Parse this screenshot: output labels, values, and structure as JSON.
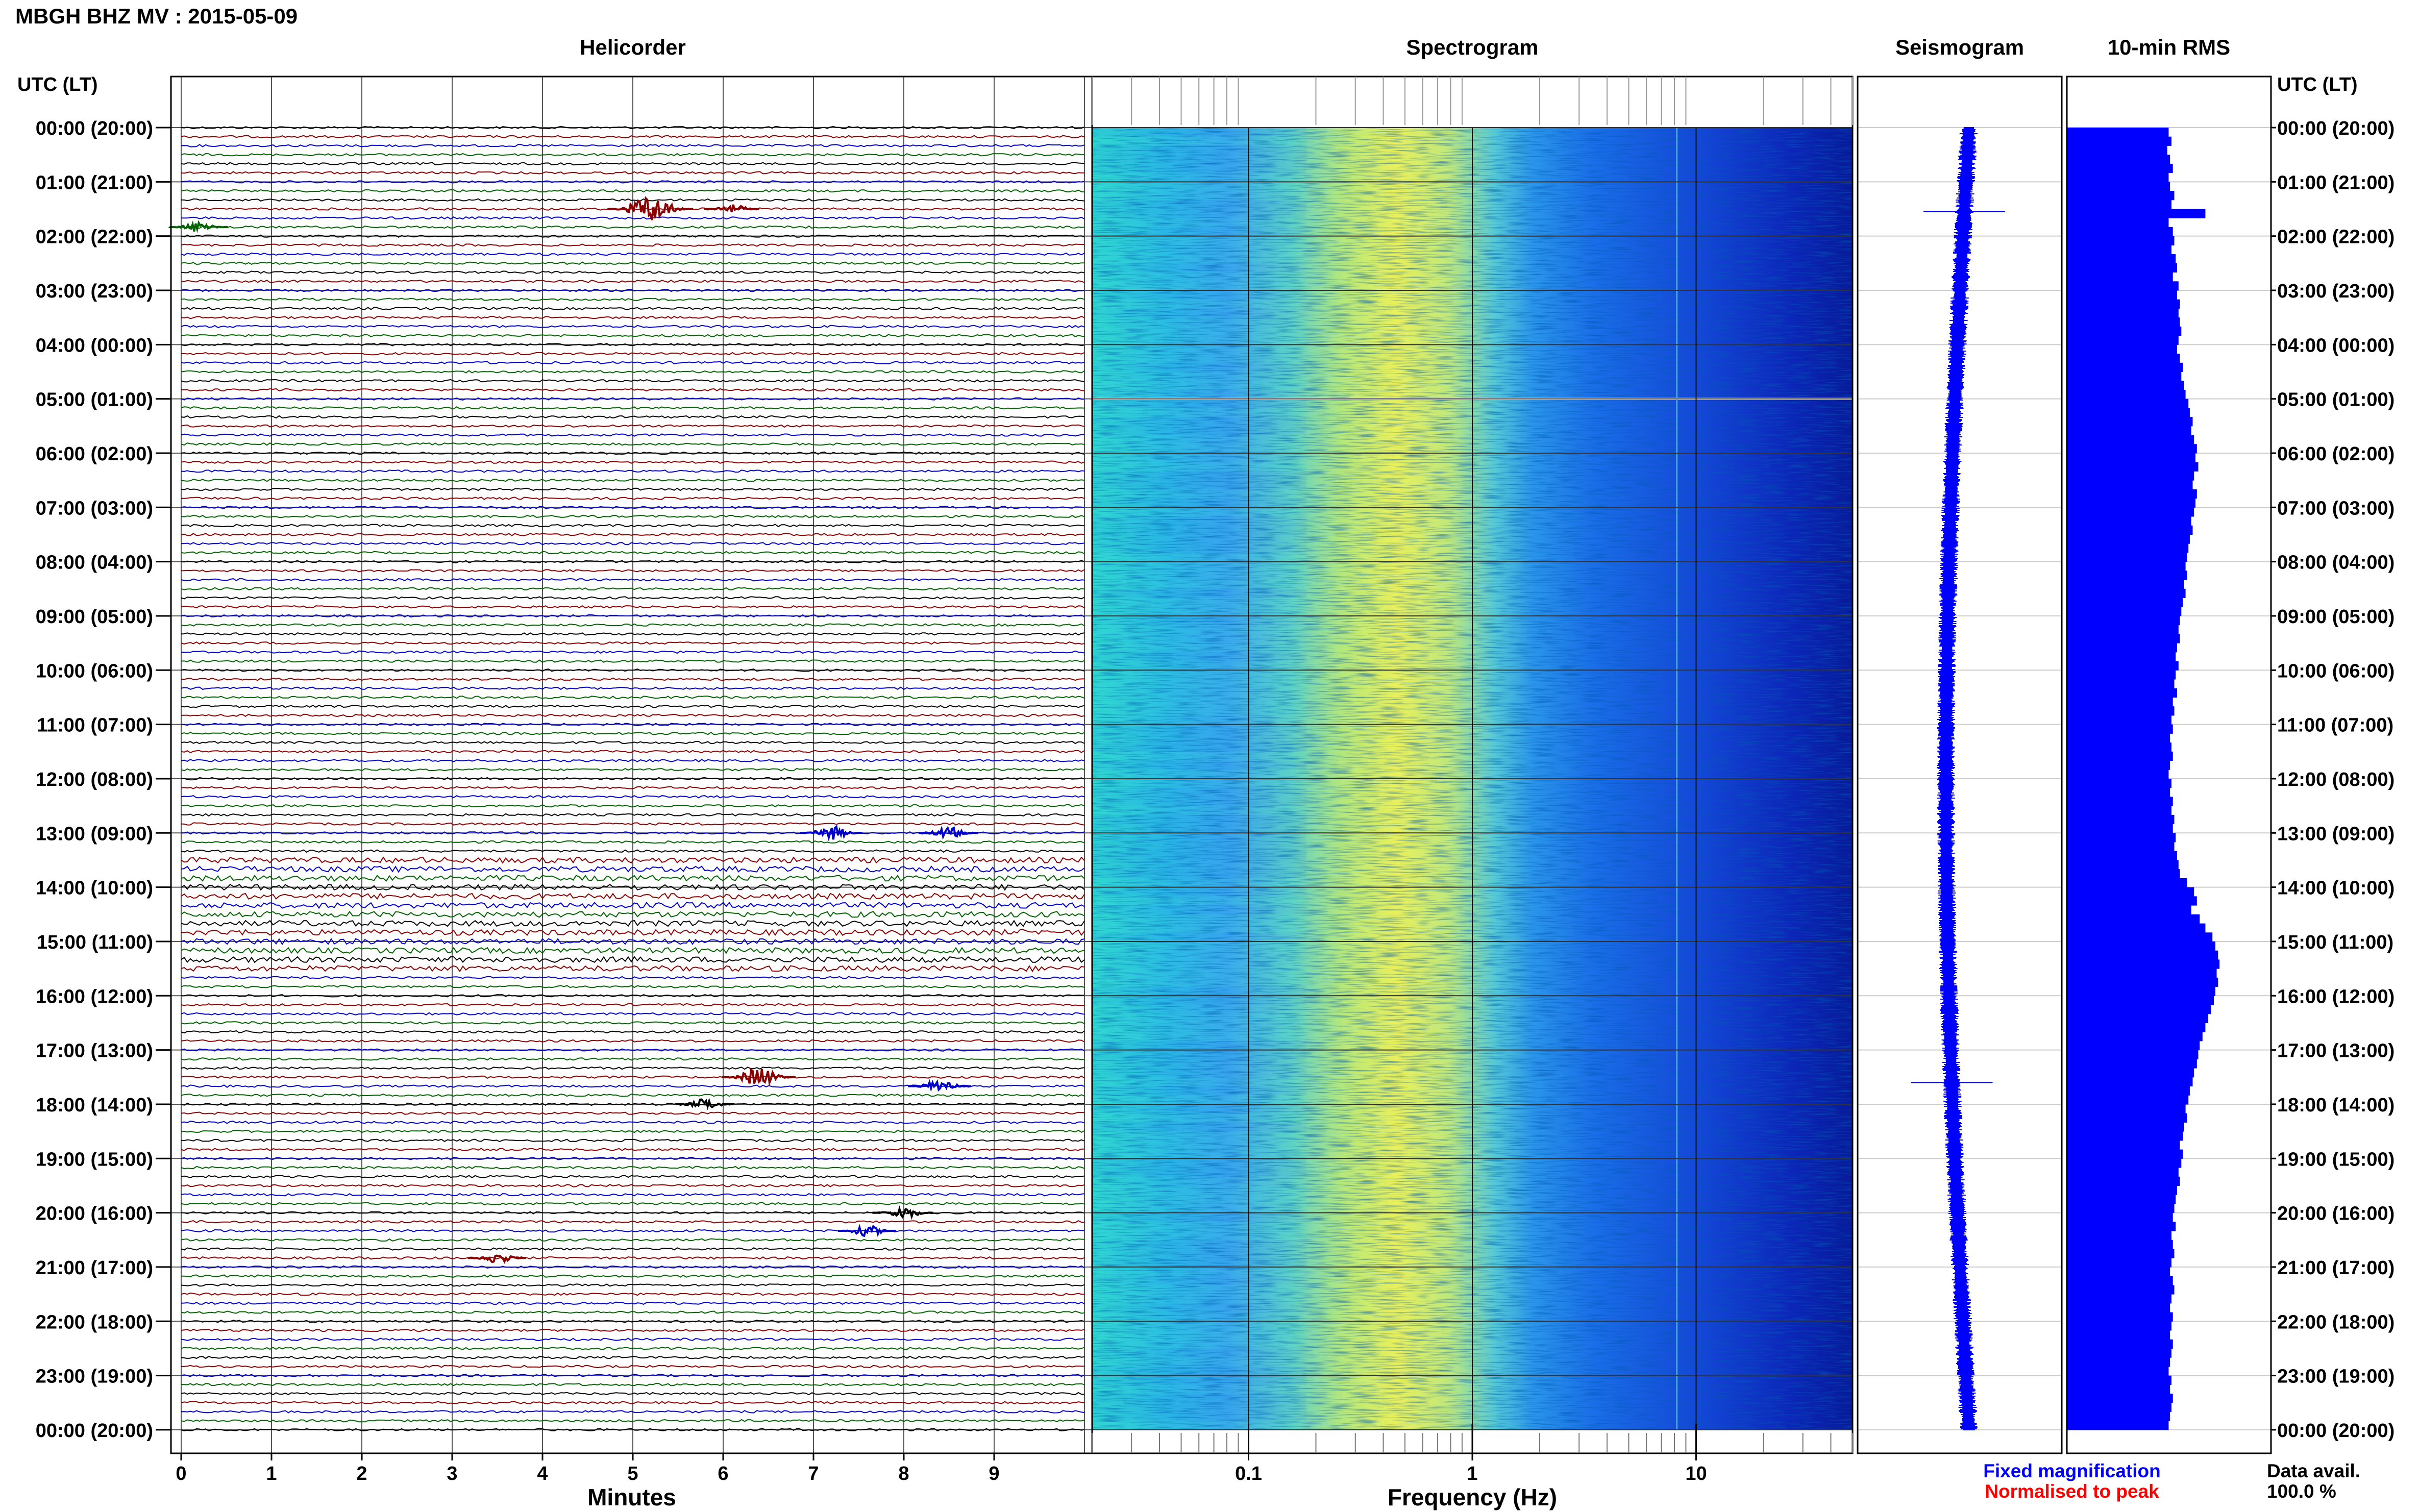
{
  "header": {
    "title": "MBGH BHZ MV : 2015-05-09"
  },
  "panels": {
    "helicorder": "Helicorder",
    "spectrogram": "Spectrogram",
    "seismogram": "Seismogram",
    "rms": "10-min RMS"
  },
  "time_axis": {
    "label": "UTC (LT)",
    "ticks": [
      "00:00 (20:00)",
      "01:00 (21:00)",
      "02:00 (22:00)",
      "03:00 (23:00)",
      "04:00 (00:00)",
      "05:00 (01:00)",
      "06:00 (02:00)",
      "07:00 (03:00)",
      "08:00 (04:00)",
      "09:00 (05:00)",
      "10:00 (06:00)",
      "11:00 (07:00)",
      "12:00 (08:00)",
      "13:00 (09:00)",
      "14:00 (10:00)",
      "15:00 (11:00)",
      "16:00 (12:00)",
      "17:00 (13:00)",
      "18:00 (14:00)",
      "19:00 (15:00)",
      "20:00 (16:00)",
      "21:00 (17:00)",
      "22:00 (18:00)",
      "23:00 (19:00)",
      "00:00 (20:00)"
    ]
  },
  "x_axes": {
    "minutes_label": "Minutes",
    "minutes_ticks": [
      "0",
      "1",
      "2",
      "3",
      "4",
      "5",
      "6",
      "7",
      "8",
      "9"
    ],
    "frequency_label": "Frequency (Hz)",
    "frequency_ticks": [
      "0.1",
      "1",
      "10"
    ]
  },
  "legend": {
    "fixed": "Fixed magnification",
    "normalised": "Normalised to peak",
    "avail_label": "Data avail.",
    "avail_value": "100.0 %"
  },
  "colors": {
    "trace_cycle": [
      "#000000",
      "#8b0000",
      "#0000cc",
      "#006400"
    ],
    "legend_fixed": "#0000ff",
    "legend_normalised": "#ff0000",
    "seismogram": "#0000ff",
    "rms_bar": "#0000ff"
  },
  "chart_data": [
    {
      "type": "line",
      "name": "helicorder",
      "x_unit": "minutes",
      "xlim": [
        0,
        10
      ],
      "rows_per_hour": 6,
      "row_minutes": 10,
      "hours": 24,
      "events": [
        {
          "hour": 1.5,
          "minute": 5.2,
          "amplitude": 3.0
        },
        {
          "hour": 1.5,
          "minute": 6.1,
          "amplitude": 1.0
        },
        {
          "hour": 1.83,
          "minute": 0.2,
          "amplitude": 1.2
        },
        {
          "hour": 13.0,
          "minute": 7.2,
          "amplitude": 1.5
        },
        {
          "hour": 13.0,
          "minute": 8.5,
          "amplitude": 1.3
        },
        {
          "hour": 17.5,
          "minute": 6.4,
          "amplitude": 2.2
        },
        {
          "hour": 17.67,
          "minute": 8.4,
          "amplitude": 1.5
        },
        {
          "hour": 18.0,
          "minute": 5.8,
          "amplitude": 1.2
        },
        {
          "hour": 20.0,
          "minute": 8.0,
          "amplitude": 1.3
        },
        {
          "hour": 20.33,
          "minute": 7.6,
          "amplitude": 1.2
        },
        {
          "hour": 20.83,
          "minute": 3.5,
          "amplitude": 1.2
        }
      ],
      "noisy_hours": [
        13.5,
        15.5
      ]
    },
    {
      "type": "heatmap",
      "name": "spectrogram",
      "x_scale": "log",
      "xlim": [
        0.02,
        50
      ],
      "ylim_hours": [
        0,
        24
      ],
      "gap_hour": 5.0
    },
    {
      "type": "line",
      "name": "seismogram",
      "y_unit": "hours",
      "ylim": [
        0,
        24
      ],
      "spikes_hours": [
        1.55,
        17.6
      ]
    },
    {
      "type": "bar",
      "name": "10-min RMS",
      "orientation": "horizontal",
      "interval_minutes": 10,
      "values": [
        0.72,
        0.74,
        0.71,
        0.73,
        0.75,
        0.72,
        0.73,
        0.76,
        0.74,
        0.98,
        0.72,
        0.75,
        0.76,
        0.74,
        0.77,
        0.78,
        0.75,
        0.79,
        0.78,
        0.8,
        0.79,
        0.8,
        0.81,
        0.79,
        0.78,
        0.8,
        0.82,
        0.81,
        0.83,
        0.84,
        0.86,
        0.87,
        0.89,
        0.88,
        0.9,
        0.92,
        0.91,
        0.93,
        0.9,
        0.89,
        0.92,
        0.91,
        0.9,
        0.88,
        0.89,
        0.87,
        0.86,
        0.85,
        0.84,
        0.85,
        0.83,
        0.84,
        0.82,
        0.81,
        0.8,
        0.79,
        0.8,
        0.78,
        0.77,
        0.79,
        0.77,
        0.76,
        0.78,
        0.75,
        0.76,
        0.74,
        0.75,
        0.73,
        0.74,
        0.75,
        0.73,
        0.72,
        0.74,
        0.73,
        0.75,
        0.74,
        0.76,
        0.75,
        0.77,
        0.76,
        0.78,
        0.79,
        0.8,
        0.85,
        0.9,
        0.92,
        0.88,
        0.94,
        0.98,
        1.03,
        1.05,
        1.07,
        1.08,
        1.06,
        1.07,
        1.05,
        1.04,
        1.02,
        1.0,
        0.98,
        0.96,
        0.94,
        0.93,
        0.92,
        0.9,
        0.89,
        0.87,
        0.86,
        0.84,
        0.85,
        0.83,
        0.82,
        0.8,
        0.82,
        0.81,
        0.79,
        0.8,
        0.78,
        0.77,
        0.76,
        0.75,
        0.77,
        0.74,
        0.75,
        0.76,
        0.74,
        0.73,
        0.75,
        0.76,
        0.74,
        0.73,
        0.75,
        0.74,
        0.73,
        0.75,
        0.74,
        0.73,
        0.72,
        0.74,
        0.73,
        0.75,
        0.74,
        0.73,
        0.72
      ]
    }
  ]
}
